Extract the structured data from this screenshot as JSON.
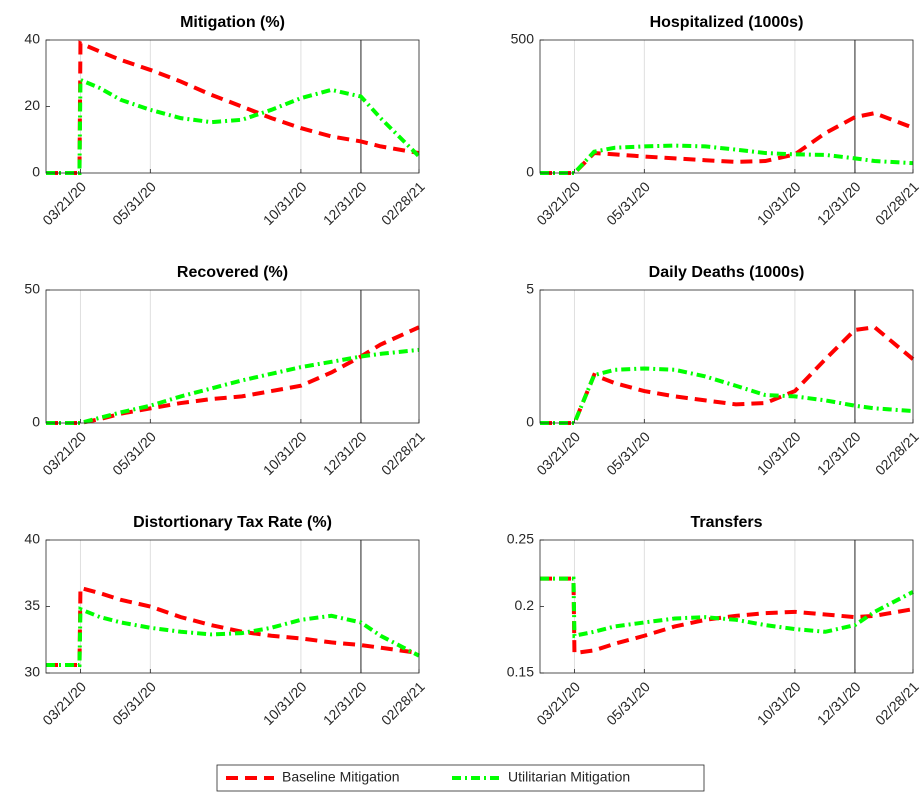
{
  "chart_data": [
    {
      "type": "line",
      "title": "Mitigation (%)",
      "x": [
        "2020-02-15",
        "2020-03-20",
        "2020-03-21",
        "2020-04-10",
        "2020-05-01",
        "2020-05-31",
        "2020-07-01",
        "2020-08-01",
        "2020-09-01",
        "2020-10-01",
        "2020-10-31",
        "2020-12-01",
        "2020-12-31",
        "2021-01-20",
        "2021-02-28"
      ],
      "xlim": [
        "2020-02-15",
        "2021-02-28"
      ],
      "xticks": [
        {
          "value": "2020-03-21",
          "label": "03/21/20"
        },
        {
          "value": "2020-05-31",
          "label": "05/31/20"
        },
        {
          "value": "2020-10-31",
          "label": "10/31/20"
        },
        {
          "value": "2020-12-31",
          "label": "12/31/20"
        },
        {
          "value": "2021-02-28",
          "label": "02/28/21"
        }
      ],
      "ylim": [
        0,
        40
      ],
      "yticks": [
        0,
        20,
        40
      ],
      "grid": "x",
      "marker_line": "2020-12-31",
      "series": [
        {
          "name": "Baseline Mitigation",
          "color": "#ff0000",
          "style": "dashed",
          "values": [
            0,
            0,
            39,
            36.5,
            34,
            31,
            27.5,
            23.5,
            20,
            16.5,
            13.5,
            11,
            9.5,
            8,
            6
          ]
        },
        {
          "name": "Utilitarian Mitigation",
          "color": "#00ff00",
          "style": "dashdot",
          "values": [
            0,
            0,
            28,
            25.5,
            22,
            19,
            16.5,
            15.3,
            16,
            19,
            22.5,
            25,
            23,
            16.5,
            5
          ]
        }
      ]
    },
    {
      "type": "line",
      "title": "Hospitalized (1000s)",
      "x": [
        "2020-02-15",
        "2020-03-20",
        "2020-03-21",
        "2020-04-10",
        "2020-05-01",
        "2020-05-31",
        "2020-07-01",
        "2020-08-01",
        "2020-09-01",
        "2020-10-01",
        "2020-10-31",
        "2020-12-01",
        "2020-12-31",
        "2021-01-20",
        "2021-02-28"
      ],
      "xlim": [
        "2020-02-15",
        "2021-02-28"
      ],
      "xticks": [
        {
          "value": "2020-03-21",
          "label": "03/21/20"
        },
        {
          "value": "2020-05-31",
          "label": "05/31/20"
        },
        {
          "value": "2020-10-31",
          "label": "10/31/20"
        },
        {
          "value": "2020-12-31",
          "label": "12/31/20"
        },
        {
          "value": "2021-02-28",
          "label": "02/28/21"
        }
      ],
      "ylim": [
        0,
        500
      ],
      "yticks": [
        0,
        500
      ],
      "grid": "x",
      "marker_line": "2020-12-31",
      "series": [
        {
          "name": "Baseline Mitigation",
          "color": "#ff0000",
          "style": "dashed",
          "values": [
            0,
            0,
            0,
            75,
            70,
            62,
            55,
            48,
            42,
            45,
            70,
            150,
            210,
            225,
            170
          ]
        },
        {
          "name": "Utilitarian Mitigation",
          "color": "#00ff00",
          "style": "dashdot",
          "values": [
            0,
            0,
            0,
            80,
            95,
            100,
            103,
            100,
            88,
            75,
            70,
            68,
            55,
            45,
            37
          ]
        }
      ]
    },
    {
      "type": "line",
      "title": "Recovered (%)",
      "x": [
        "2020-02-15",
        "2020-03-20",
        "2020-03-21",
        "2020-04-10",
        "2020-05-01",
        "2020-05-31",
        "2020-07-01",
        "2020-08-01",
        "2020-09-01",
        "2020-10-01",
        "2020-10-31",
        "2020-12-01",
        "2020-12-31",
        "2021-01-20",
        "2021-02-28"
      ],
      "xlim": [
        "2020-02-15",
        "2021-02-28"
      ],
      "xticks": [
        {
          "value": "2020-03-21",
          "label": "03/21/20"
        },
        {
          "value": "2020-05-31",
          "label": "05/31/20"
        },
        {
          "value": "2020-10-31",
          "label": "10/31/20"
        },
        {
          "value": "2020-12-31",
          "label": "12/31/20"
        },
        {
          "value": "2021-02-28",
          "label": "02/28/21"
        }
      ],
      "ylim": [
        0,
        50
      ],
      "yticks": [
        0,
        50
      ],
      "grid": "x",
      "marker_line": "2020-12-31",
      "series": [
        {
          "name": "Baseline Mitigation",
          "color": "#ff0000",
          "style": "dashed",
          "values": [
            0,
            0,
            0,
            1.5,
            3.5,
            5.5,
            7.5,
            9,
            10,
            12,
            14,
            19,
            25,
            29.5,
            36
          ]
        },
        {
          "name": "Utilitarian Mitigation",
          "color": "#00ff00",
          "style": "dashdot",
          "values": [
            0,
            0,
            0,
            2,
            4,
            6.5,
            10,
            13,
            16,
            18.5,
            21,
            23,
            25,
            26,
            27.5
          ]
        }
      ]
    },
    {
      "type": "line",
      "title": "Daily Deaths (1000s)",
      "x": [
        "2020-02-15",
        "2020-03-20",
        "2020-03-21",
        "2020-04-10",
        "2020-05-01",
        "2020-05-31",
        "2020-07-01",
        "2020-08-01",
        "2020-09-01",
        "2020-10-01",
        "2020-10-31",
        "2020-12-01",
        "2020-12-31",
        "2021-01-20",
        "2021-02-28"
      ],
      "xlim": [
        "2020-02-15",
        "2021-02-28"
      ],
      "xticks": [
        {
          "value": "2020-03-21",
          "label": "03/21/20"
        },
        {
          "value": "2020-05-31",
          "label": "05/31/20"
        },
        {
          "value": "2020-10-31",
          "label": "10/31/20"
        },
        {
          "value": "2020-12-31",
          "label": "12/31/20"
        },
        {
          "value": "2021-02-28",
          "label": "02/28/21"
        }
      ],
      "ylim": [
        0,
        5
      ],
      "yticks": [
        0,
        5
      ],
      "grid": "x",
      "marker_line": "2020-12-31",
      "series": [
        {
          "name": "Baseline Mitigation",
          "color": "#ff0000",
          "style": "dashed",
          "values": [
            0,
            0,
            0,
            1.8,
            1.5,
            1.2,
            1.0,
            0.85,
            0.7,
            0.75,
            1.2,
            2.4,
            3.5,
            3.6,
            2.4
          ]
        },
        {
          "name": "Utilitarian Mitigation",
          "color": "#00ff00",
          "style": "dashdot",
          "values": [
            0,
            0,
            0,
            1.8,
            2.0,
            2.05,
            2.0,
            1.75,
            1.4,
            1.05,
            1.0,
            0.85,
            0.65,
            0.55,
            0.45
          ]
        }
      ]
    },
    {
      "type": "line",
      "title": "Distortionary Tax Rate (%)",
      "x": [
        "2020-02-15",
        "2020-03-20",
        "2020-03-21",
        "2020-04-10",
        "2020-05-01",
        "2020-05-31",
        "2020-07-01",
        "2020-08-01",
        "2020-09-01",
        "2020-10-01",
        "2020-10-31",
        "2020-12-01",
        "2020-12-31",
        "2021-01-20",
        "2021-02-28"
      ],
      "xlim": [
        "2020-02-15",
        "2021-02-28"
      ],
      "xticks": [
        {
          "value": "2020-03-21",
          "label": "03/21/20"
        },
        {
          "value": "2020-05-31",
          "label": "05/31/20"
        },
        {
          "value": "2020-10-31",
          "label": "10/31/20"
        },
        {
          "value": "2020-12-31",
          "label": "12/31/20"
        },
        {
          "value": "2021-02-28",
          "label": "02/28/21"
        }
      ],
      "ylim": [
        30,
        40
      ],
      "yticks": [
        30,
        35,
        40
      ],
      "grid": "x",
      "marker_line": "2020-12-31",
      "series": [
        {
          "name": "Baseline Mitigation",
          "color": "#ff0000",
          "style": "dashed",
          "values": [
            30.6,
            30.6,
            36.4,
            36,
            35.5,
            35,
            34.2,
            33.6,
            33.1,
            32.8,
            32.6,
            32.3,
            32.1,
            31.9,
            31.5
          ]
        },
        {
          "name": "Utilitarian Mitigation",
          "color": "#00ff00",
          "style": "dashdot",
          "values": [
            30.6,
            30.6,
            34.8,
            34.2,
            33.8,
            33.4,
            33.1,
            32.9,
            33,
            33.4,
            34,
            34.3,
            33.8,
            32.8,
            31.3
          ]
        }
      ]
    },
    {
      "type": "line",
      "title": "Transfers",
      "x": [
        "2020-02-15",
        "2020-03-20",
        "2020-03-21",
        "2020-04-10",
        "2020-05-01",
        "2020-05-31",
        "2020-07-01",
        "2020-08-01",
        "2020-09-01",
        "2020-10-01",
        "2020-10-31",
        "2020-12-01",
        "2020-12-31",
        "2021-01-20",
        "2021-02-28"
      ],
      "xlim": [
        "2020-02-15",
        "2021-02-28"
      ],
      "xticks": [
        {
          "value": "2020-03-21",
          "label": "03/21/20"
        },
        {
          "value": "2020-05-31",
          "label": "05/31/20"
        },
        {
          "value": "2020-10-31",
          "label": "10/31/20"
        },
        {
          "value": "2020-12-31",
          "label": "12/31/20"
        },
        {
          "value": "2021-02-28",
          "label": "02/28/21"
        }
      ],
      "ylim": [
        0.15,
        0.25
      ],
      "yticks": [
        0.15,
        0.2,
        0.25
      ],
      "grid": "x",
      "marker_line": "2020-12-31",
      "series": [
        {
          "name": "Baseline Mitigation",
          "color": "#ff0000",
          "style": "dashed",
          "values": [
            0.221,
            0.221,
            0.165,
            0.167,
            0.172,
            0.178,
            0.185,
            0.19,
            0.193,
            0.195,
            0.196,
            0.194,
            0.192,
            0.193,
            0.198
          ]
        },
        {
          "name": "Utilitarian Mitigation",
          "color": "#00ff00",
          "style": "dashdot",
          "values": [
            0.221,
            0.221,
            0.178,
            0.181,
            0.185,
            0.188,
            0.191,
            0.192,
            0.19,
            0.186,
            0.183,
            0.181,
            0.186,
            0.196,
            0.211
          ]
        }
      ]
    }
  ]
}
